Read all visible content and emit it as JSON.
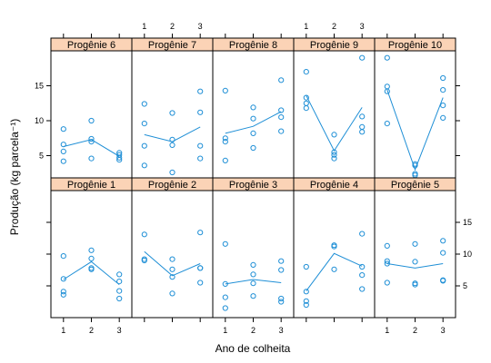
{
  "chart_data": {
    "type": "scatter",
    "layout": "lattice 5 columns x 2 rows",
    "xlabel": "Ano de colheita",
    "ylabel": "Produção (kg parcela⁻¹)",
    "x_ticks": [
      1,
      2,
      3
    ],
    "y_ticks": [
      5,
      10,
      15
    ],
    "xlim": [
      0.55,
      3.45
    ],
    "ylim": [
      0,
      20
    ],
    "colors": {
      "points": "#1f8fd6",
      "line": "#1f8fd6",
      "strip": "#fbd3b6",
      "frame": "#000000"
    },
    "panels": [
      {
        "label": "Progênie 1",
        "points": [
          [
            1,
            3.6
          ],
          [
            1,
            4.1
          ],
          [
            1,
            6.1
          ],
          [
            1,
            9.7
          ],
          [
            2,
            7.6
          ],
          [
            2,
            7.8
          ],
          [
            2,
            9.3
          ],
          [
            2,
            10.6
          ],
          [
            3,
            3.0
          ],
          [
            3,
            4.2
          ],
          [
            3,
            5.7
          ],
          [
            3,
            6.8
          ]
        ],
        "line": [
          [
            1,
            6.0
          ],
          [
            2,
            8.8
          ],
          [
            3,
            5.2
          ]
        ]
      },
      {
        "label": "Progênie 2",
        "points": [
          [
            1,
            9.0
          ],
          [
            1,
            9.2
          ],
          [
            1,
            13.1
          ],
          [
            2,
            3.8
          ],
          [
            2,
            6.4
          ],
          [
            2,
            7.6
          ],
          [
            2,
            9.2
          ],
          [
            3,
            5.5
          ],
          [
            3,
            7.8
          ],
          [
            3,
            7.8
          ],
          [
            3,
            13.4
          ]
        ],
        "line": [
          [
            1,
            10.4
          ],
          [
            2,
            6.6
          ],
          [
            3,
            8.5
          ]
        ]
      },
      {
        "label": "Progênie 3",
        "points": [
          [
            1,
            1.5
          ],
          [
            1,
            3.2
          ],
          [
            1,
            5.3
          ],
          [
            1,
            11.6
          ],
          [
            2,
            3.4
          ],
          [
            2,
            5.4
          ],
          [
            2,
            6.8
          ],
          [
            2,
            8.3
          ],
          [
            3,
            2.5
          ],
          [
            3,
            3.0
          ],
          [
            3,
            7.5
          ],
          [
            3,
            8.9
          ]
        ],
        "line": [
          [
            1,
            5.3
          ],
          [
            2,
            6.0
          ],
          [
            3,
            5.5
          ]
        ]
      },
      {
        "label": "Progênie 4",
        "points": [
          [
            1,
            2.0
          ],
          [
            1,
            2.6
          ],
          [
            1,
            4.1
          ],
          [
            1,
            8.0
          ],
          [
            2,
            7.6
          ],
          [
            2,
            11.2
          ],
          [
            2,
            11.4
          ],
          [
            3,
            4.5
          ],
          [
            3,
            6.7
          ],
          [
            3,
            8.0
          ],
          [
            3,
            13.2
          ]
        ],
        "line": [
          [
            1,
            4.2
          ],
          [
            2,
            10.1
          ],
          [
            3,
            8.1
          ]
        ]
      },
      {
        "label": "Progênie 5",
        "points": [
          [
            1,
            5.5
          ],
          [
            1,
            8.5
          ],
          [
            1,
            8.9
          ],
          [
            1,
            11.3
          ],
          [
            2,
            5.2
          ],
          [
            2,
            5.4
          ],
          [
            2,
            8.8
          ],
          [
            2,
            11.6
          ],
          [
            3,
            5.8
          ],
          [
            3,
            5.9
          ],
          [
            3,
            10.2
          ],
          [
            3,
            12.1
          ]
        ],
        "line": [
          [
            1,
            8.5
          ],
          [
            2,
            7.8
          ],
          [
            3,
            8.5
          ]
        ]
      },
      {
        "label": "Progênie 6",
        "points": [
          [
            1,
            4.2
          ],
          [
            1,
            5.6
          ],
          [
            1,
            6.6
          ],
          [
            1,
            8.8
          ],
          [
            2,
            4.6
          ],
          [
            2,
            7.0
          ],
          [
            2,
            7.4
          ],
          [
            2,
            10.0
          ],
          [
            3,
            4.4
          ],
          [
            3,
            4.7
          ],
          [
            3,
            5.1
          ],
          [
            3,
            5.4
          ]
        ],
        "line": [
          [
            1,
            6.3
          ],
          [
            2,
            7.3
          ],
          [
            3,
            4.9
          ]
        ]
      },
      {
        "label": "Progênie 7",
        "points": [
          [
            1,
            3.6
          ],
          [
            1,
            6.4
          ],
          [
            1,
            9.6
          ],
          [
            1,
            12.4
          ],
          [
            2,
            2.6
          ],
          [
            2,
            6.5
          ],
          [
            2,
            7.3
          ],
          [
            2,
            11.1
          ],
          [
            3,
            4.6
          ],
          [
            3,
            6.4
          ],
          [
            3,
            11.2
          ],
          [
            3,
            14.2
          ]
        ],
        "line": [
          [
            1,
            8.0
          ],
          [
            2,
            7.0
          ],
          [
            3,
            9.1
          ]
        ]
      },
      {
        "label": "Progênie 8",
        "points": [
          [
            1,
            4.3
          ],
          [
            1,
            7.0
          ],
          [
            1,
            7.5
          ],
          [
            1,
            14.3
          ],
          [
            2,
            6.1
          ],
          [
            2,
            8.2
          ],
          [
            2,
            10.3
          ],
          [
            2,
            11.9
          ],
          [
            3,
            8.5
          ],
          [
            3,
            10.5
          ],
          [
            3,
            11.5
          ],
          [
            3,
            15.8
          ]
        ],
        "line": [
          [
            1,
            8.2
          ],
          [
            2,
            9.2
          ],
          [
            3,
            11.3
          ]
        ]
      },
      {
        "label": "Progênie 9",
        "points": [
          [
            1,
            11.8
          ],
          [
            1,
            12.5
          ],
          [
            1,
            13.3
          ],
          [
            1,
            17.0
          ],
          [
            2,
            4.6
          ],
          [
            2,
            5.1
          ],
          [
            2,
            5.5
          ],
          [
            2,
            8.0
          ],
          [
            3,
            8.4
          ],
          [
            3,
            9.1
          ],
          [
            3,
            10.6
          ],
          [
            3,
            19.0
          ]
        ],
        "line": [
          [
            1,
            13.6
          ],
          [
            2,
            5.7
          ],
          [
            3,
            11.9
          ]
        ]
      },
      {
        "label": "Progênie 10",
        "points": [
          [
            1,
            9.6
          ],
          [
            1,
            14.2
          ],
          [
            1,
            14.9
          ],
          [
            1,
            19.0
          ],
          [
            2,
            2.2
          ],
          [
            2,
            2.4
          ],
          [
            2,
            3.6
          ],
          [
            2,
            3.8
          ],
          [
            3,
            10.4
          ],
          [
            3,
            12.2
          ],
          [
            3,
            14.4
          ],
          [
            3,
            16.1
          ]
        ],
        "line": [
          [
            1,
            14.4
          ],
          [
            2,
            3.0
          ],
          [
            3,
            13.3
          ]
        ]
      }
    ]
  }
}
